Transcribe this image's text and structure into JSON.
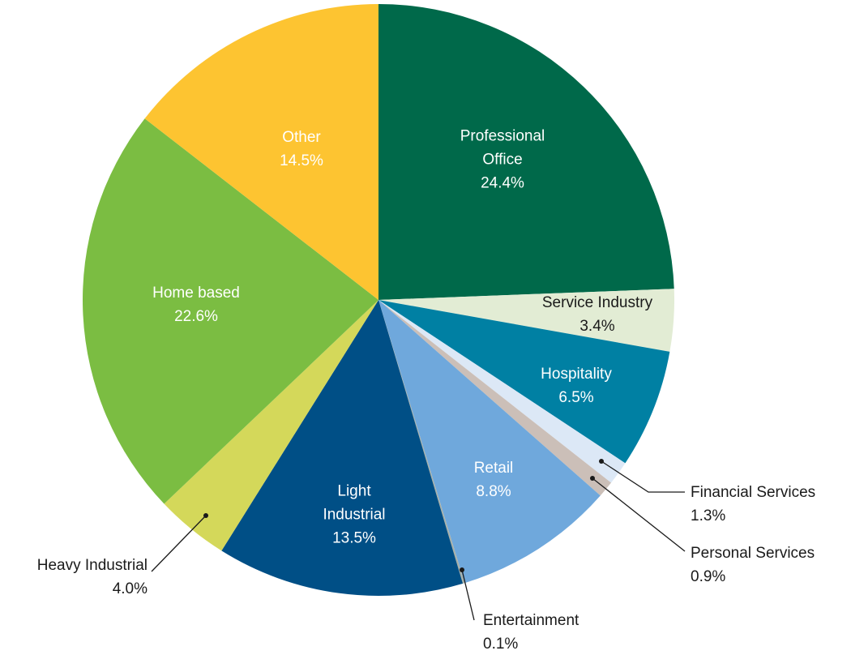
{
  "chart_data": {
    "type": "pie",
    "categories": [
      "Professional Office",
      "Service Industry",
      "Hospitality",
      "Financial Services",
      "Personal Services",
      "Retail",
      "Entertainment",
      "Light Industrial",
      "Heavy Industrial",
      "Home based",
      "Other"
    ],
    "values": [
      24.4,
      3.4,
      6.5,
      1.3,
      0.9,
      8.8,
      0.1,
      13.5,
      4.0,
      22.6,
      14.5
    ],
    "value_labels": [
      "24.4%",
      "3.4%",
      "6.5%",
      "1.3%",
      "0.9%",
      "8.8%",
      "0.1%",
      "13.5%",
      "4.0%",
      "22.6%",
      "14.5%"
    ],
    "colors": [
      "#00694a",
      "#e2ecd4",
      "#0080a3",
      "#dce8f6",
      "#cbbfb8",
      "#6fa8dc",
      "#a8b0a8",
      "#004f86",
      "#d4d85a",
      "#7bbd42",
      "#fdc431"
    ]
  }
}
